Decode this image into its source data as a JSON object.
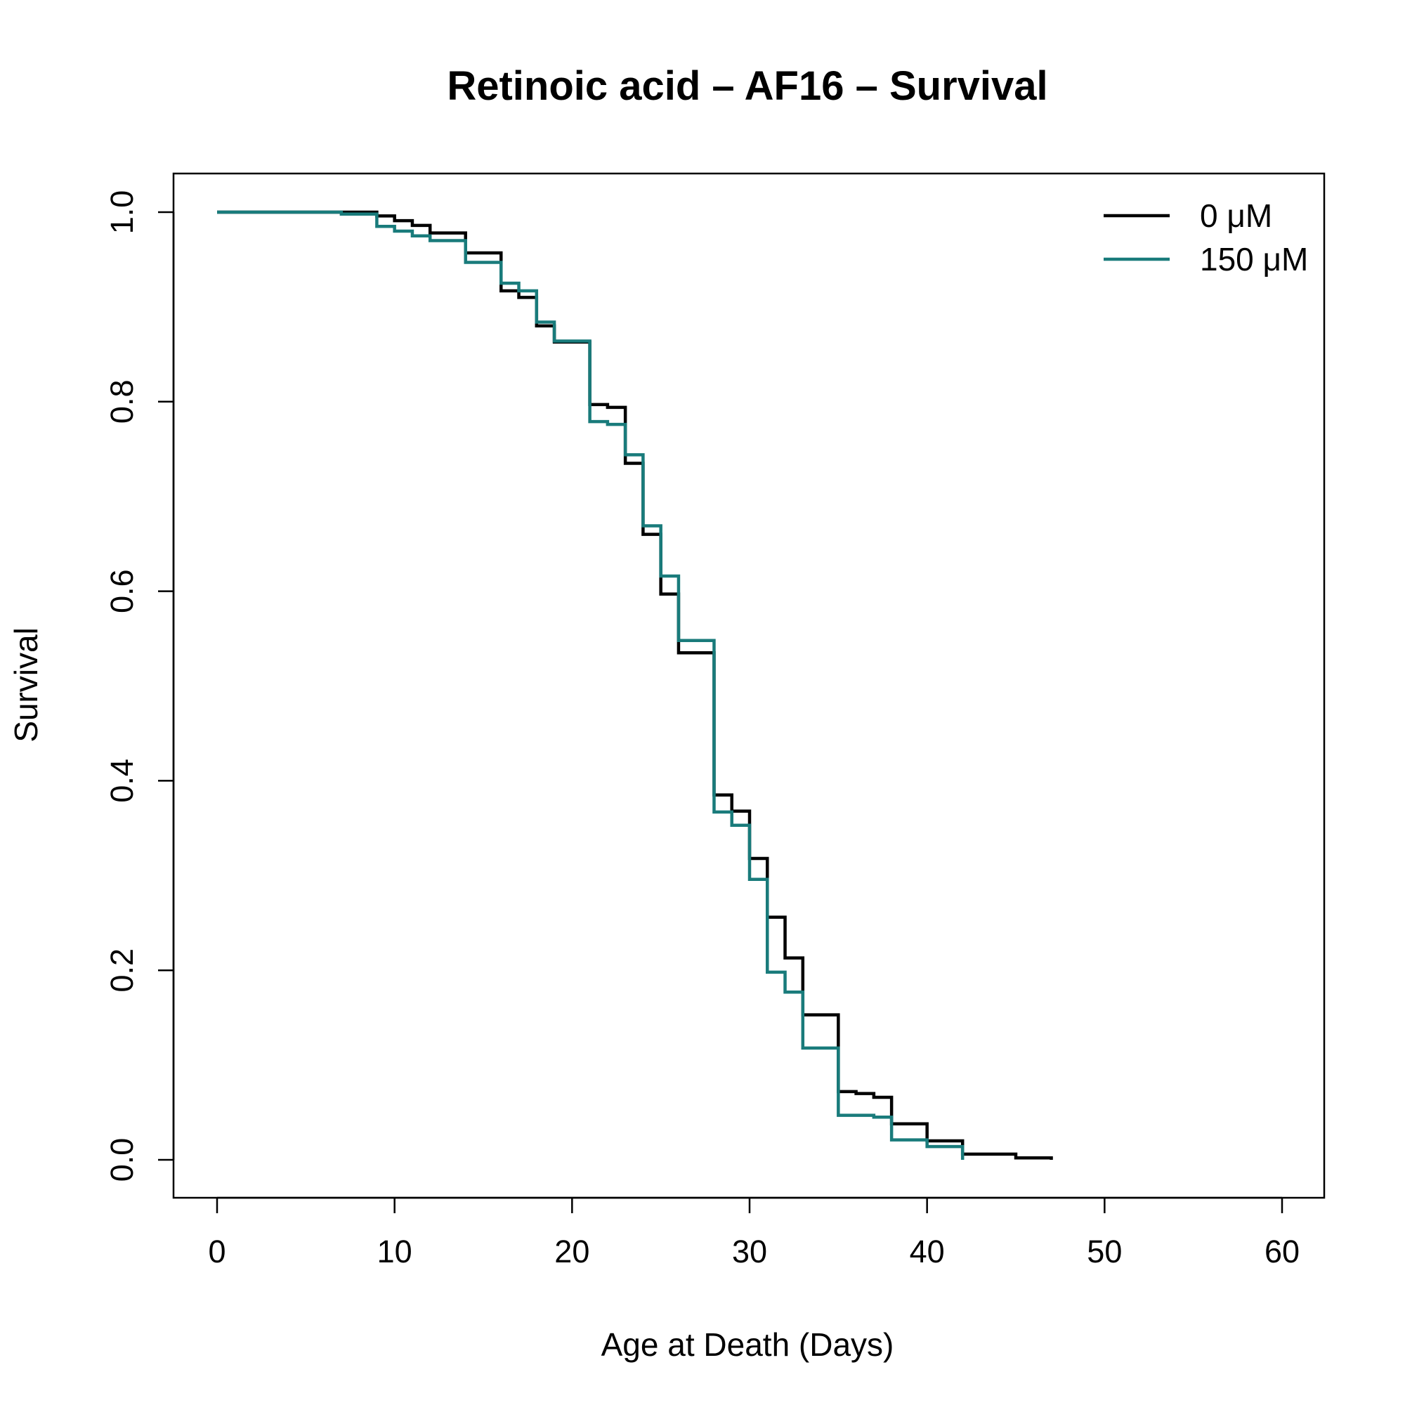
{
  "chart_data": {
    "type": "line",
    "step": true,
    "title": "Retinoic acid – AF16 – Survival",
    "xlabel": "Age at Death (Days)",
    "ylabel": "Survival",
    "xlim": [
      0,
      60
    ],
    "ylim": [
      0,
      1
    ],
    "xticks": [
      "0",
      "10",
      "20",
      "30",
      "40",
      "50",
      "60"
    ],
    "yticks": [
      "0.0",
      "0.2",
      "0.4",
      "0.6",
      "0.8",
      "1.0"
    ],
    "grid": false,
    "legend": {
      "placement": "top-right"
    },
    "series": [
      {
        "name": "0 μM",
        "color": "#000000",
        "x": [
          0,
          7,
          9,
          10,
          11,
          12,
          14,
          16,
          17,
          18,
          19,
          21,
          22,
          23,
          24,
          25,
          26,
          28,
          29,
          30,
          31,
          32,
          33,
          35,
          36,
          37,
          38,
          40,
          42,
          45,
          47
        ],
        "y": [
          1.0,
          1.0,
          0.996,
          0.991,
          0.986,
          0.978,
          0.957,
          0.917,
          0.91,
          0.88,
          0.863,
          0.797,
          0.794,
          0.735,
          0.66,
          0.597,
          0.535,
          0.385,
          0.368,
          0.318,
          0.256,
          0.213,
          0.153,
          0.072,
          0.07,
          0.066,
          0.038,
          0.02,
          0.006,
          0.002,
          0.0
        ]
      },
      {
        "name": "150 μM",
        "color": "#197b7b",
        "x": [
          0,
          7,
          9,
          10,
          11,
          12,
          14,
          16,
          17,
          18,
          19,
          21,
          22,
          23,
          24,
          25,
          26,
          28,
          29,
          30,
          31,
          32,
          33,
          35,
          37,
          38,
          40,
          42
        ],
        "y": [
          1.0,
          0.998,
          0.985,
          0.98,
          0.975,
          0.97,
          0.947,
          0.925,
          0.917,
          0.884,
          0.864,
          0.779,
          0.776,
          0.744,
          0.669,
          0.616,
          0.548,
          0.367,
          0.353,
          0.296,
          0.198,
          0.177,
          0.118,
          0.047,
          0.045,
          0.021,
          0.014,
          0.0
        ]
      }
    ]
  }
}
